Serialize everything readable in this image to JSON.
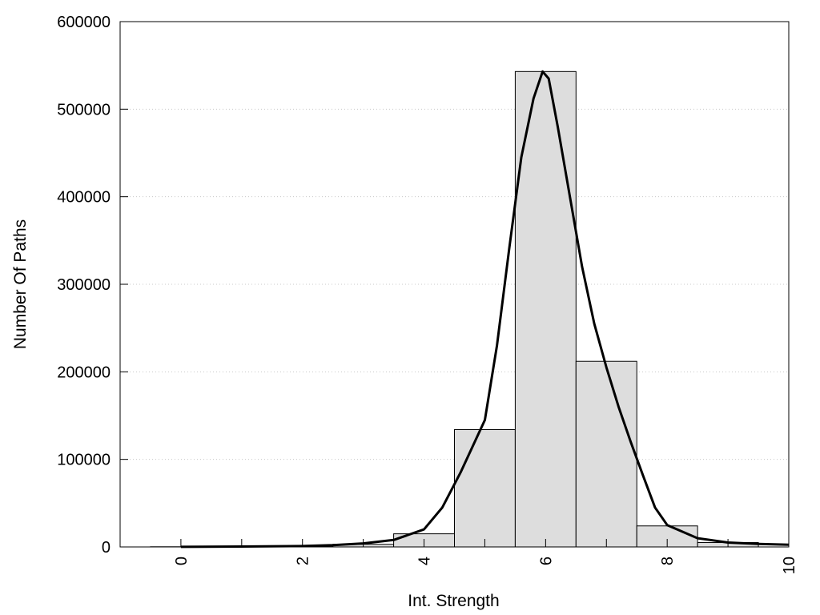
{
  "chart_data": {
    "type": "bar",
    "xlabel": "Int. Strength",
    "ylabel": "Number Of Paths",
    "xlim": [
      -1,
      10
    ],
    "ylim": [
      0,
      600000
    ],
    "x_ticks": [
      "0",
      "2",
      "4",
      "6",
      "8",
      "10"
    ],
    "y_ticks": [
      "0",
      "100000",
      "200000",
      "300000",
      "400000",
      "500000",
      "600000"
    ],
    "grid": "horizontal dotted",
    "bins": [
      {
        "center": 0,
        "value": 200
      },
      {
        "center": 1,
        "value": 500
      },
      {
        "center": 2,
        "value": 1000
      },
      {
        "center": 3,
        "value": 3000
      },
      {
        "center": 4,
        "value": 15000
      },
      {
        "center": 5,
        "value": 134000
      },
      {
        "center": 6,
        "value": 543000
      },
      {
        "center": 7,
        "value": 212000
      },
      {
        "center": 8,
        "value": 24000
      },
      {
        "center": 9,
        "value": 5000
      }
    ],
    "fit_curve": {
      "x": [
        0,
        1,
        2,
        2.5,
        3,
        3.5,
        4,
        4.3,
        4.6,
        5,
        5.2,
        5.4,
        5.6,
        5.8,
        5.95,
        6.05,
        6.2,
        6.4,
        6.6,
        6.8,
        7,
        7.2,
        7.4,
        7.6,
        7.8,
        8,
        8.5,
        9,
        9.5,
        10
      ],
      "y": [
        100,
        500,
        1000,
        2000,
        4000,
        8000,
        20000,
        45000,
        85000,
        145000,
        230000,
        340000,
        445000,
        512000,
        543000,
        535000,
        480000,
        400000,
        320000,
        255000,
        205000,
        160000,
        120000,
        82000,
        45000,
        25000,
        10000,
        5000,
        3500,
        2500
      ]
    }
  }
}
